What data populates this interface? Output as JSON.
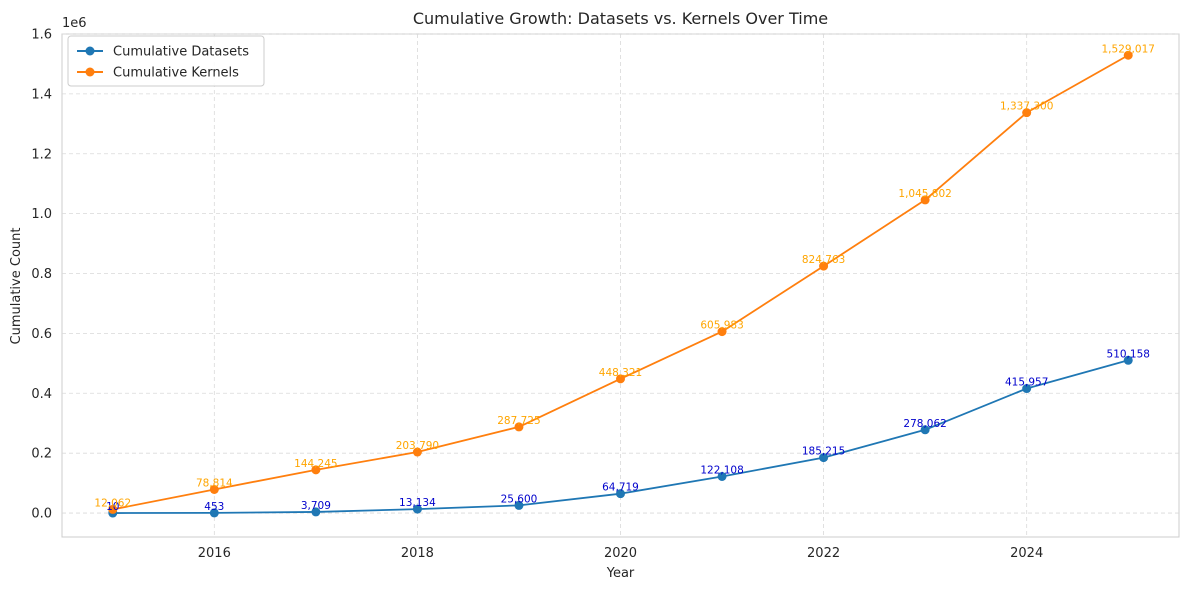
{
  "chart_data": {
    "type": "line",
    "title": "Cumulative Growth: Datasets vs. Kernels Over Time",
    "xlabel": "Year",
    "ylabel": "Cumulative Count",
    "y_offset_label": "1e6",
    "x": [
      2015,
      2016,
      2017,
      2018,
      2019,
      2020,
      2021,
      2022,
      2023,
      2024,
      2025
    ],
    "xlim": [
      2014.5,
      2025.5
    ],
    "ylim": [
      -0.08,
      1.6
    ],
    "x_ticks": [
      "2016",
      "2018",
      "2020",
      "2022",
      "2024"
    ],
    "x_tick_values": [
      2016,
      2018,
      2020,
      2022,
      2024
    ],
    "y_ticks": [
      "0.0",
      "0.2",
      "0.4",
      "0.6",
      "0.8",
      "1.0",
      "1.2",
      "1.4",
      "1.6"
    ],
    "y_tick_values": [
      0.0,
      0.2,
      0.4,
      0.6,
      0.8,
      1.0,
      1.2,
      1.4,
      1.6
    ],
    "grid": true,
    "legend_position": "top-left",
    "series": [
      {
        "name": "Cumulative Datasets",
        "color": "#1f77b4",
        "label_color": "#0000cc",
        "values": [
          10,
          453,
          3709,
          13134,
          25600,
          64719,
          122108,
          185215,
          278062,
          415957,
          510158
        ],
        "labels": [
          "10",
          "453",
          "3,709",
          "13,134",
          "25,600",
          "64,719",
          "122,108",
          "185,215",
          "278,062",
          "415,957",
          "510,158"
        ]
      },
      {
        "name": "Cumulative Kernels",
        "color": "#ff7f0e",
        "label_color": "#ffa500",
        "values": [
          12062,
          78814,
          144245,
          203790,
          287725,
          448321,
          605983,
          824763,
          1045802,
          1337300,
          1529017
        ],
        "labels": [
          "12,062",
          "78,814",
          "144,245",
          "203,790",
          "287,725",
          "448,321",
          "605,983",
          "824,763",
          "1,045,802",
          "1,337,300",
          "1,529,017"
        ]
      }
    ]
  }
}
